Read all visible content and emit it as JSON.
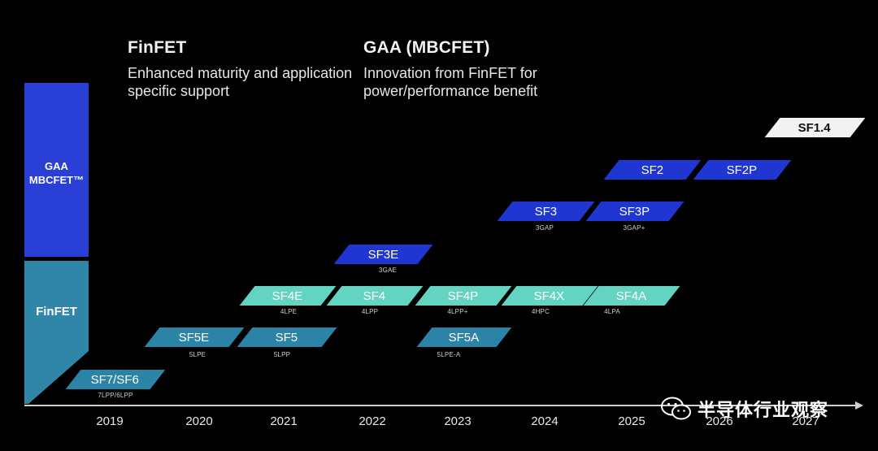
{
  "header": {
    "finfet": {
      "title": "FinFET",
      "subtitle": "Enhanced maturity and application specific support"
    },
    "gaa": {
      "title": "GAA (MBCFET)",
      "subtitle": "Innovation from FinFET for power/performance benefit"
    }
  },
  "left_column": {
    "gaa_label_line1": "GAA",
    "gaa_label_line2": "MBCFET™",
    "finfet_label": "FinFET"
  },
  "years": [
    "2019",
    "2020",
    "2021",
    "2022",
    "2023",
    "2024",
    "2025",
    "2026",
    "2027"
  ],
  "nodes": [
    {
      "label": "SF7/SF6",
      "sublabel": "7LPP/6LPP"
    },
    {
      "label": "SF5E",
      "sublabel": "5LPE"
    },
    {
      "label": "SF5",
      "sublabel": "5LPP"
    },
    {
      "label": "SF4E",
      "sublabel": "4LPE"
    },
    {
      "label": "SF4",
      "sublabel": "4LPP"
    },
    {
      "label": "SF4P",
      "sublabel": "4LPP+"
    },
    {
      "label": "SF4X",
      "sublabel": "4HPC"
    },
    {
      "label": "SF4A",
      "sublabel": "4LPA"
    },
    {
      "label": "SF5A",
      "sublabel": "5LPE-A"
    },
    {
      "label": "SF3E",
      "sublabel": "3GAE"
    },
    {
      "label": "SF3",
      "sublabel": "3GAP"
    },
    {
      "label": "SF3P",
      "sublabel": "3GAP+"
    },
    {
      "label": "SF2",
      "sublabel": ""
    },
    {
      "label": "SF2P",
      "sublabel": ""
    },
    {
      "label": "SF1.4",
      "sublabel": ""
    }
  ],
  "colors": {
    "finfet_dark": "#2b83a6",
    "finfet_light": "#63d3c2",
    "gaa": "#1f36d2",
    "future": "#f2f2f2",
    "left_gaa_block": "#2a3fd6",
    "left_finfet_block": "#2f86a8"
  },
  "watermark": {
    "text": "半导体行业观察",
    "icon": "wechat-icon"
  }
}
